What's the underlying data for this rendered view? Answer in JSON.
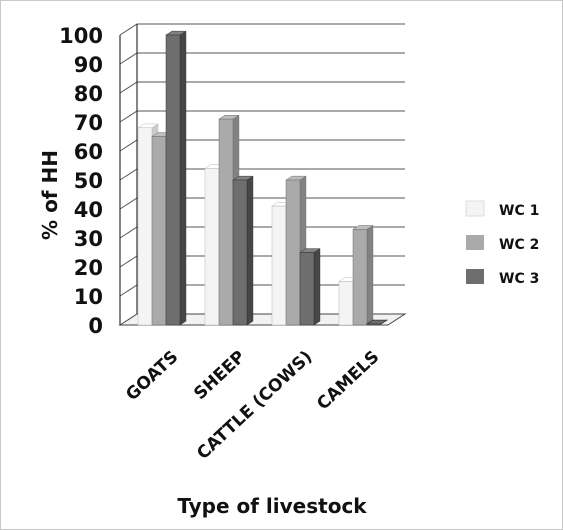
{
  "chart_data": {
    "type": "bar",
    "title": "",
    "xlabel": "Type of livestock",
    "ylabel": "% of HH",
    "categories": [
      "GOATS",
      "SHEEP",
      "CATTLE (COWS)",
      "CAMELS"
    ],
    "series": [
      {
        "name": "WC 1",
        "values": [
          68,
          54,
          41,
          15
        ],
        "color": "#f4f4f4"
      },
      {
        "name": "WC 2",
        "values": [
          65,
          71,
          50,
          33
        ],
        "color": "#aaaaaa"
      },
      {
        "name": "WC 3",
        "values": [
          100,
          50,
          25,
          0
        ],
        "color": "#6e6e6e"
      }
    ],
    "ylim": [
      0,
      100
    ],
    "yticks": [
      0,
      10,
      20,
      30,
      40,
      50,
      60,
      70,
      80,
      90,
      100
    ],
    "grid": true,
    "legend": "right"
  }
}
